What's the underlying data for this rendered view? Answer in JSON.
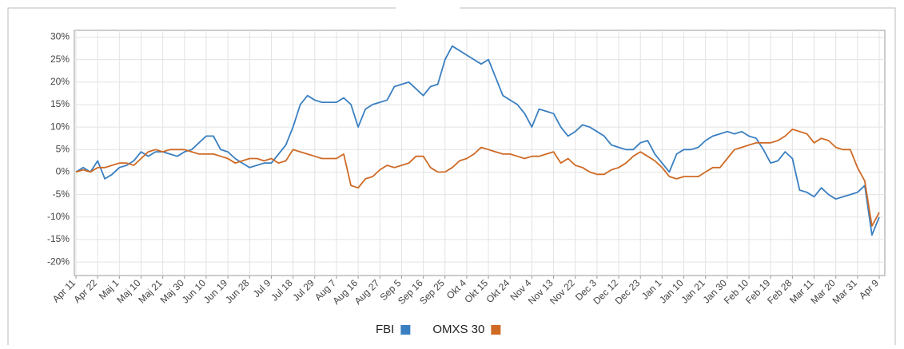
{
  "chart_data": {
    "type": "line",
    "categories": [
      "Apr 11",
      null,
      null,
      "Apr 22",
      null,
      null,
      "Maj 1",
      null,
      null,
      "Maj 10",
      null,
      null,
      "Maj 21",
      null,
      null,
      "Maj 30",
      null,
      null,
      "Jun 10",
      null,
      null,
      "Jun 19",
      null,
      null,
      "Jun 28",
      null,
      null,
      "Jul 9",
      null,
      null,
      "Jul 18",
      null,
      null,
      "Jul 29",
      null,
      null,
      "Aug 7",
      null,
      null,
      "Aug 16",
      null,
      null,
      "Aug 27",
      null,
      null,
      "Sep 5",
      null,
      null,
      "Sep 16",
      null,
      null,
      "Sep 25",
      null,
      null,
      "Okt 4",
      null,
      null,
      "Okt 15",
      null,
      null,
      "Okt 24",
      null,
      null,
      "Nov 4",
      null,
      null,
      "Nov 13",
      null,
      null,
      "Nov 22",
      null,
      null,
      "Dec 3",
      null,
      null,
      "Dec 12",
      null,
      null,
      "Dec 23",
      null,
      null,
      "Jan 1",
      null,
      null,
      "Jan 10",
      null,
      null,
      "Jan 21",
      null,
      null,
      "Jan 30",
      null,
      null,
      "Feb 10",
      null,
      null,
      "Feb 19",
      null,
      null,
      "Feb 28",
      null,
      null,
      "Mar 11",
      null,
      null,
      "Mar 20",
      null,
      null,
      "Mar 31",
      null,
      null,
      "Apr 9"
    ],
    "series": [
      {
        "name": "FBI",
        "color": "#3a7fc1",
        "values": [
          0,
          1,
          0,
          2.5,
          -1.5,
          -0.5,
          1,
          1.5,
          2.5,
          4.5,
          3.5,
          4.5,
          4.5,
          4,
          3.5,
          4.5,
          5,
          6.5,
          8,
          8,
          5,
          4.5,
          3,
          2,
          1,
          1.5,
          2,
          2,
          4,
          6,
          10,
          15,
          17,
          16,
          15.5,
          15.5,
          15.5,
          16.5,
          15,
          10,
          14,
          15,
          15.5,
          16,
          19,
          19.5,
          20,
          18.5,
          17,
          19,
          19.5,
          25,
          28,
          27,
          26,
          25,
          24,
          25,
          21,
          17,
          16,
          15,
          13,
          10,
          14,
          13.5,
          13,
          10,
          8,
          9,
          10.5,
          10,
          9,
          8,
          6,
          5.5,
          5,
          5,
          6.5,
          7,
          4,
          2,
          0,
          4,
          5,
          5,
          5.5,
          7,
          8,
          8.5,
          9,
          8.5,
          9,
          8,
          7.5,
          5,
          2,
          2.5,
          4.5,
          3,
          -4,
          -4.5,
          -5.5,
          -3.5,
          -5,
          -6,
          -5.5,
          -5,
          -4.5,
          -3,
          -14,
          -10
        ]
      },
      {
        "name": "OMXS 30",
        "color": "#cf6a25",
        "values": [
          0,
          0.5,
          0,
          1,
          1,
          1.5,
          2,
          2,
          1.5,
          3,
          4.5,
          5,
          4.5,
          5,
          5,
          5,
          4.5,
          4,
          4,
          4,
          3.5,
          3,
          2,
          2.5,
          3,
          3,
          2.5,
          3,
          2,
          2.5,
          5,
          4.5,
          4,
          3.5,
          3,
          3,
          3,
          4,
          -3,
          -3.5,
          -1.5,
          -1,
          0.5,
          1.5,
          1,
          1.5,
          2,
          3.5,
          3.5,
          1,
          0,
          0,
          1,
          2.5,
          3,
          4,
          5.5,
          5,
          4.5,
          4,
          4,
          3.5,
          3,
          3.5,
          3.5,
          4,
          4.5,
          2,
          3,
          1.5,
          1,
          0,
          -0.5,
          -0.5,
          0.5,
          1,
          2,
          3.5,
          4.5,
          3.5,
          2.5,
          1,
          -1,
          -1.5,
          -1,
          -1,
          -1,
          0,
          1,
          1,
          3,
          5,
          5.5,
          6,
          6.5,
          6.5,
          6.5,
          7,
          8,
          9.5,
          9,
          8.5,
          6.5,
          7.5,
          7,
          5.5,
          5,
          5,
          1,
          -2,
          -12,
          -9
        ]
      }
    ],
    "ylim": [
      -23,
      31.5
    ],
    "yticks": [
      {
        "value": -20,
        "label": "-20%"
      },
      {
        "value": -15,
        "label": "-15%"
      },
      {
        "value": -10,
        "label": "-10%"
      },
      {
        "value": -5,
        "label": "-5%"
      },
      {
        "value": 0,
        "label": "0%"
      },
      {
        "value": 5,
        "label": "5%"
      },
      {
        "value": 10,
        "label": "10%"
      },
      {
        "value": 15,
        "label": "15%"
      },
      {
        "value": 20,
        "label": "20%"
      },
      {
        "value": 25,
        "label": "25%"
      },
      {
        "value": 30,
        "label": "30%"
      }
    ],
    "grid": true,
    "legend": "bottom"
  }
}
